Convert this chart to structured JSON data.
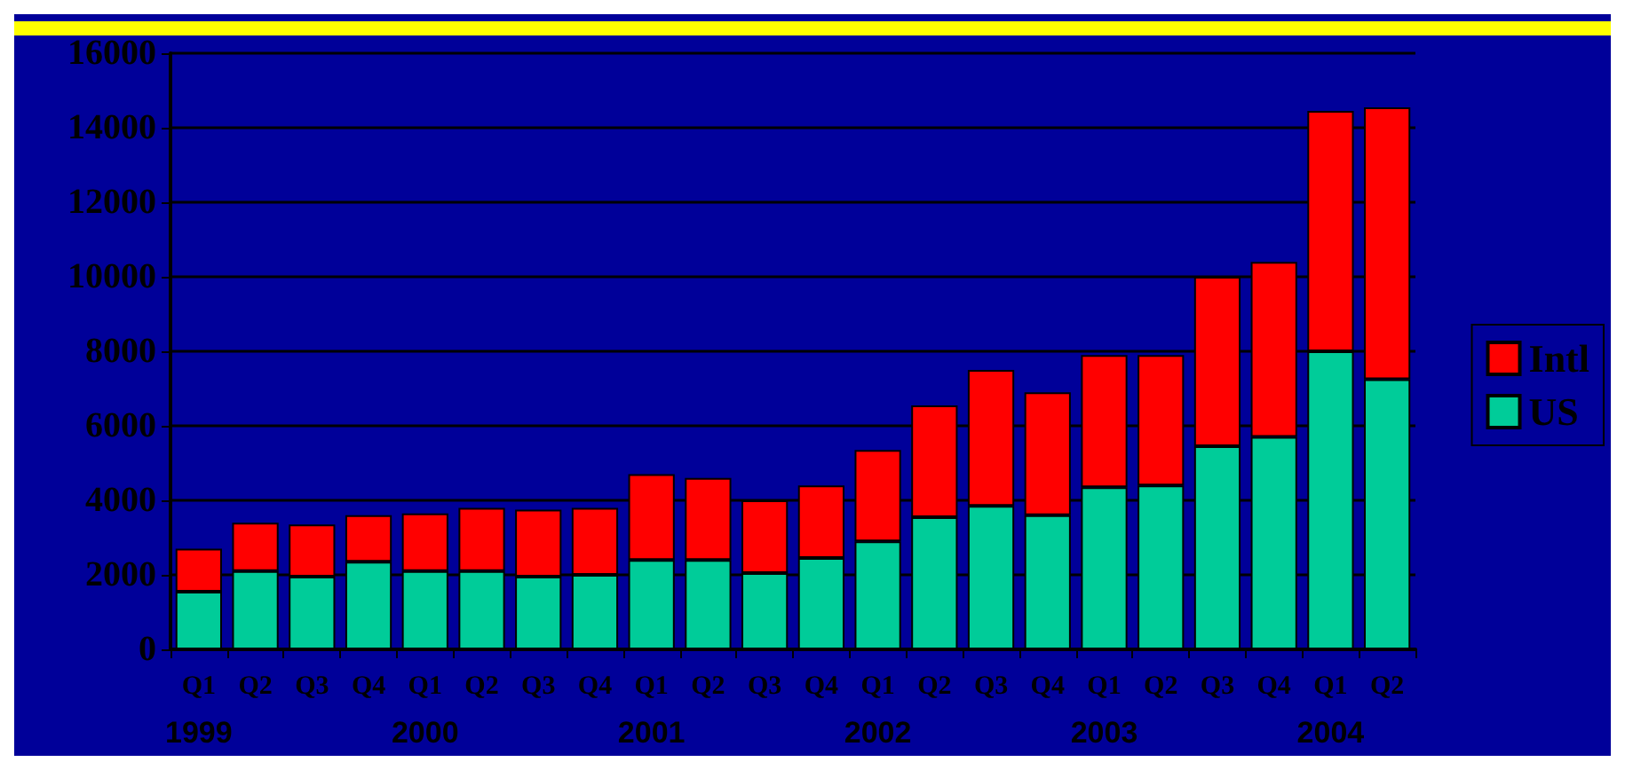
{
  "chart_data": {
    "type": "bar",
    "stacked": true,
    "categories": [
      "Q1\n1999",
      "Q2",
      "Q3",
      "Q4",
      "Q1\n2000",
      "Q2",
      "Q3",
      "Q4",
      "Q1\n2001",
      "Q2",
      "Q3",
      "Q4",
      "Q1\n2002",
      "Q2",
      "Q3",
      "Q4",
      "Q1\n2003",
      "Q2",
      "Q3",
      "Q4",
      "Q1\n2004",
      "Q2"
    ],
    "series": [
      {
        "name": "US",
        "color": "#00cc99",
        "values": [
          1550,
          2100,
          1950,
          2350,
          2100,
          2100,
          1950,
          2000,
          2400,
          2400,
          2050,
          2450,
          2900,
          3550,
          3850,
          3600,
          4350,
          4400,
          5450,
          5700,
          8000,
          7250
        ]
      },
      {
        "name": "Intl",
        "color": "#ff0000",
        "values": [
          1150,
          1300,
          1400,
          1250,
          1550,
          1700,
          1800,
          1800,
          2300,
          2200,
          1950,
          1950,
          2450,
          3000,
          3650,
          3300,
          3550,
          3500,
          4550,
          4700,
          6450,
          7300
        ]
      }
    ],
    "ylim": [
      0,
      16000
    ],
    "yticks": [
      0,
      2000,
      4000,
      6000,
      8000,
      10000,
      12000,
      14000,
      16000
    ],
    "grid": "y",
    "legend": "right"
  }
}
